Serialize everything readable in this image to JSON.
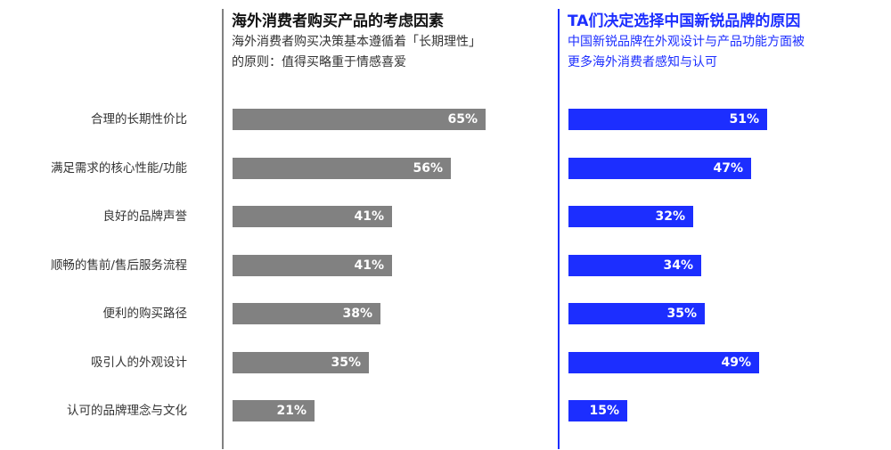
{
  "colors": {
    "left": "#818181",
    "right": "#1c2eff",
    "left_title": "#111111",
    "left_sub": "#333333"
  },
  "left_panel": {
    "title": "海外消费者购买产品的考虑因素",
    "subtitle_lines": [
      "海外消费者购买决策基本遵循着「长期理性」",
      "的原则：值得买略重于情感喜爱"
    ]
  },
  "right_panel": {
    "title": "TA们决定选择中国新锐品牌的原因",
    "subtitle_lines": [
      "中国新锐品牌在外观设计与产品功能方面被",
      "更多海外消费者感知与认可"
    ]
  },
  "chart_data": [
    {
      "type": "bar",
      "orientation": "horizontal",
      "title": "海外消费者购买产品的考虑因素",
      "categories": [
        "合理的长期性价比",
        "满足需求的核心性能/功能",
        "良好的品牌声誉",
        "顺畅的售前/售后服务流程",
        "便利的购买路径",
        "吸引人的外观设计",
        "认可的品牌理念与文化"
      ],
      "values": [
        65,
        56,
        41,
        41,
        38,
        35,
        21
      ],
      "value_labels": [
        "65%",
        "56%",
        "41%",
        "41%",
        "38%",
        "35%",
        "21%"
      ],
      "unit": "%",
      "xlim": [
        0,
        100
      ],
      "grid": false
    },
    {
      "type": "bar",
      "orientation": "horizontal",
      "title": "TA们决定选择中国新锐品牌的原因",
      "categories": [
        "合理的长期性价比",
        "满足需求的核心性能/功能",
        "良好的品牌声誉",
        "顺畅的售前/售后服务流程",
        "便利的购买路径",
        "吸引人的外观设计",
        "认可的品牌理念与文化"
      ],
      "values": [
        51,
        47,
        32,
        34,
        35,
        49,
        15
      ],
      "value_labels": [
        "51%",
        "47%",
        "32%",
        "34%",
        "35%",
        "49%",
        "15%"
      ],
      "unit": "%",
      "xlim": [
        0,
        100
      ],
      "grid": false
    }
  ]
}
